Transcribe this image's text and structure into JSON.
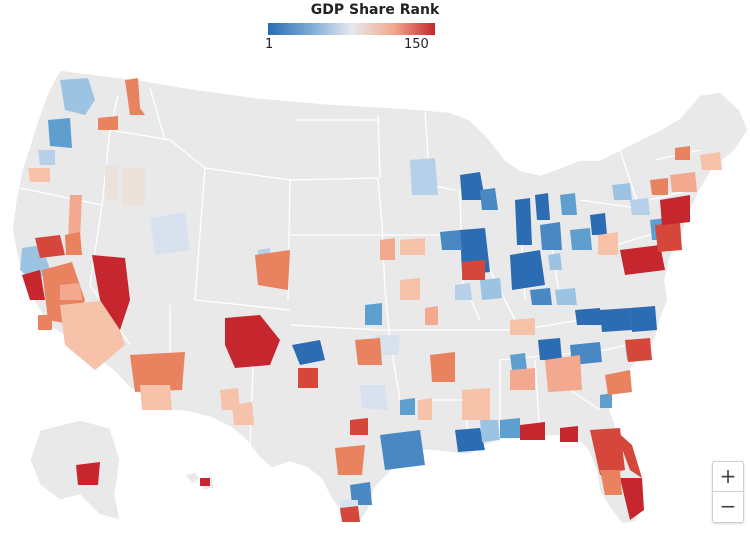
{
  "legend": {
    "title": "GDP Share Rank",
    "min_label": "1",
    "max_label": "150",
    "colors": {
      "low": "#2b6cb3",
      "mid": "#e6e9ee",
      "high": "#c6262e"
    }
  },
  "map": {
    "land_color": "#e9e9e9",
    "border_color": "#ffffff"
  },
  "controls": {
    "zoom_in_label": "+",
    "zoom_out_label": "−"
  }
}
